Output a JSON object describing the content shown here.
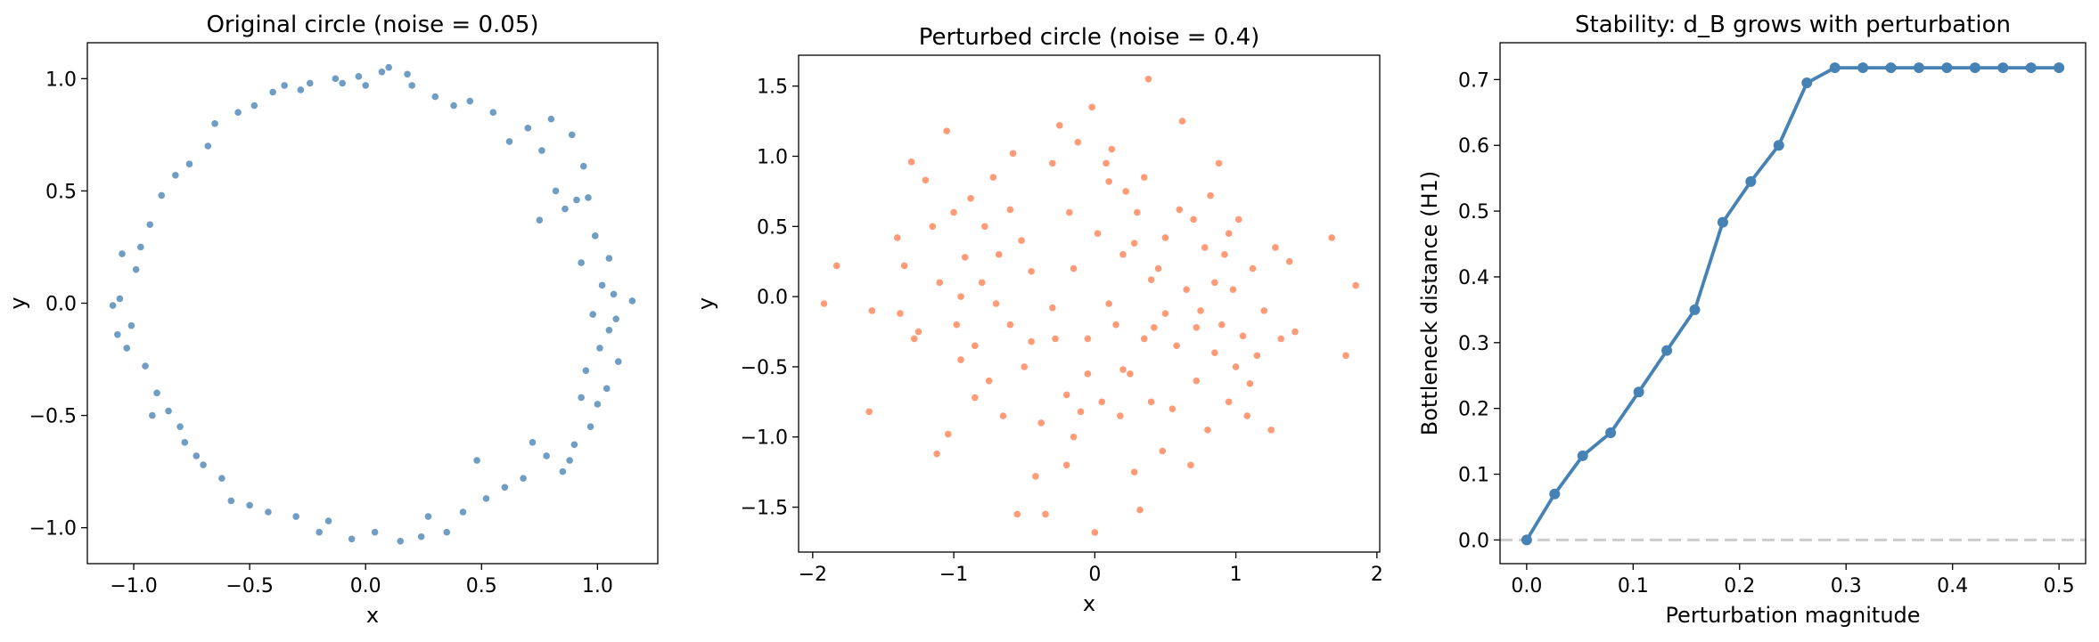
{
  "colors": {
    "circle": "#4682b4",
    "perturbed": "#ff7f50",
    "stability": "#4682b4",
    "baseline": "#cccccc"
  },
  "chart_data": [
    {
      "type": "scatter",
      "title": "Original circle (noise = 0.05)",
      "xlabel": "x",
      "ylabel": "y",
      "xlim": [
        -1.2,
        1.26
      ],
      "ylim": [
        -1.16,
        1.16
      ],
      "xticks": [
        -1.0,
        -0.5,
        0.0,
        0.5,
        1.0
      ],
      "yticks": [
        -1.0,
        -0.5,
        0.0,
        0.5,
        1.0
      ],
      "xtick_labels": [
        "−1.0",
        "−0.5",
        "0.0",
        "0.5",
        "1.0"
      ],
      "ytick_labels": [
        "−1.0",
        "−0.5",
        "0.0",
        "0.5",
        "1.0"
      ],
      "points": [
        [
          1.15,
          0.01
        ],
        [
          1.09,
          -0.26
        ],
        [
          1.08,
          -0.07
        ],
        [
          1.07,
          0.04
        ],
        [
          1.05,
          0.2
        ],
        [
          1.05,
          -0.12
        ],
        [
          1.04,
          -0.38
        ],
        [
          1.02,
          0.08
        ],
        [
          1.01,
          -0.2
        ],
        [
          1.0,
          -0.45
        ],
        [
          0.99,
          0.3
        ],
        [
          0.98,
          -0.05
        ],
        [
          0.97,
          -0.55
        ],
        [
          0.96,
          0.47
        ],
        [
          0.95,
          -0.3
        ],
        [
          0.94,
          0.61
        ],
        [
          0.93,
          -0.42
        ],
        [
          0.93,
          0.18
        ],
        [
          0.91,
          0.46
        ],
        [
          0.9,
          -0.63
        ],
        [
          0.89,
          0.75
        ],
        [
          0.88,
          -0.7
        ],
        [
          0.86,
          0.42
        ],
        [
          0.85,
          -0.75
        ],
        [
          0.82,
          0.5
        ],
        [
          0.8,
          0.82
        ],
        [
          0.78,
          -0.68
        ],
        [
          0.76,
          0.68
        ],
        [
          0.75,
          0.37
        ],
        [
          0.72,
          -0.62
        ],
        [
          0.7,
          0.78
        ],
        [
          0.68,
          -0.78
        ],
        [
          0.62,
          0.72
        ],
        [
          0.6,
          -0.82
        ],
        [
          0.55,
          0.85
        ],
        [
          0.52,
          -0.87
        ],
        [
          0.48,
          -0.7
        ],
        [
          0.45,
          0.9
        ],
        [
          0.42,
          -0.93
        ],
        [
          0.38,
          0.88
        ],
        [
          0.35,
          -1.02
        ],
        [
          0.3,
          0.92
        ],
        [
          0.27,
          -0.95
        ],
        [
          0.24,
          -1.04
        ],
        [
          0.2,
          0.97
        ],
        [
          0.18,
          1.02
        ],
        [
          0.15,
          -1.06
        ],
        [
          0.1,
          1.05
        ],
        [
          0.07,
          1.03
        ],
        [
          0.04,
          -1.02
        ],
        [
          0.0,
          0.97
        ],
        [
          -0.03,
          1.01
        ],
        [
          -0.06,
          -1.05
        ],
        [
          -0.1,
          0.98
        ],
        [
          -0.13,
          1.0
        ],
        [
          -0.16,
          -0.97
        ],
        [
          -0.2,
          -1.02
        ],
        [
          -0.24,
          0.98
        ],
        [
          -0.28,
          0.95
        ],
        [
          -0.3,
          -0.95
        ],
        [
          -0.35,
          0.97
        ],
        [
          -0.4,
          0.94
        ],
        [
          -0.42,
          -0.93
        ],
        [
          -0.48,
          0.88
        ],
        [
          -0.5,
          -0.9
        ],
        [
          -0.55,
          0.85
        ],
        [
          -0.58,
          -0.88
        ],
        [
          -0.62,
          -0.78
        ],
        [
          -0.65,
          0.8
        ],
        [
          -0.68,
          0.7
        ],
        [
          -0.7,
          -0.72
        ],
        [
          -0.73,
          -0.68
        ],
        [
          -0.76,
          0.62
        ],
        [
          -0.8,
          -0.55
        ],
        [
          -0.82,
          0.57
        ],
        [
          -0.85,
          -0.48
        ],
        [
          -0.88,
          0.48
        ],
        [
          -0.9,
          -0.4
        ],
        [
          -0.93,
          0.35
        ],
        [
          -0.95,
          -0.28
        ],
        [
          -0.97,
          0.25
        ],
        [
          -0.99,
          0.15
        ],
        [
          -1.01,
          -0.1
        ],
        [
          -1.03,
          -0.2
        ],
        [
          -1.05,
          0.22
        ],
        [
          -1.06,
          0.02
        ],
        [
          -1.07,
          -0.14
        ],
        [
          -1.09,
          -0.01
        ],
        [
          -0.92,
          -0.5
        ],
        [
          -0.78,
          -0.62
        ]
      ]
    },
    {
      "type": "scatter",
      "title": "Perturbed circle (noise = 0.4)",
      "xlabel": "x",
      "ylabel": "y",
      "xlim": [
        -2.1,
        2.02
      ],
      "ylim": [
        -1.82,
        1.72
      ],
      "xticks": [
        -2,
        -1,
        0,
        1,
        2
      ],
      "yticks": [
        -1.5,
        -1.0,
        -0.5,
        0.0,
        0.5,
        1.0,
        1.5
      ],
      "xtick_labels": [
        "−2",
        "−1",
        "0",
        "1",
        "2"
      ],
      "ytick_labels": [
        "−1.5",
        "−1.0",
        "−0.5",
        "0.0",
        "0.5",
        "1.0",
        "1.5"
      ],
      "points": [
        [
          -1.92,
          -0.05
        ],
        [
          -1.83,
          0.22
        ],
        [
          -1.6,
          -0.82
        ],
        [
          -1.58,
          -0.1
        ],
        [
          -1.4,
          0.42
        ],
        [
          -1.38,
          -0.12
        ],
        [
          -1.3,
          0.96
        ],
        [
          -1.28,
          -0.3
        ],
        [
          -1.2,
          0.83
        ],
        [
          -1.15,
          0.5
        ],
        [
          -1.12,
          -1.12
        ],
        [
          -1.1,
          0.1
        ],
        [
          -1.05,
          1.18
        ],
        [
          -1.04,
          -0.98
        ],
        [
          -1.0,
          0.6
        ],
        [
          -0.98,
          -0.2
        ],
        [
          -0.95,
          -0.45
        ],
        [
          -0.92,
          0.28
        ],
        [
          -0.88,
          0.7
        ],
        [
          -0.85,
          -0.35
        ],
        [
          -0.8,
          0.1
        ],
        [
          -0.78,
          0.5
        ],
        [
          -0.75,
          -0.6
        ],
        [
          -0.72,
          0.85
        ],
        [
          -0.68,
          0.3
        ],
        [
          -0.65,
          -0.85
        ],
        [
          -0.6,
          -0.2
        ],
        [
          -0.58,
          1.02
        ],
        [
          -0.55,
          -1.55
        ],
        [
          -0.52,
          0.4
        ],
        [
          -0.5,
          -0.5
        ],
        [
          -0.45,
          0.18
        ],
        [
          -0.42,
          -1.28
        ],
        [
          -0.38,
          -0.9
        ],
        [
          -0.35,
          -1.55
        ],
        [
          -0.3,
          0.95
        ],
        [
          -0.28,
          -0.3
        ],
        [
          -0.25,
          1.22
        ],
        [
          -0.2,
          -0.7
        ],
        [
          -0.18,
          0.6
        ],
        [
          -0.15,
          -1.0
        ],
        [
          -0.12,
          1.1
        ],
        [
          -0.1,
          -0.82
        ],
        [
          -0.05,
          -0.55
        ],
        [
          -0.02,
          1.35
        ],
        [
          0.0,
          -1.68
        ],
        [
          0.02,
          0.45
        ],
        [
          0.05,
          -0.75
        ],
        [
          0.08,
          0.95
        ],
        [
          0.1,
          -0.05
        ],
        [
          0.12,
          1.05
        ],
        [
          0.15,
          -0.2
        ],
        [
          0.18,
          -0.85
        ],
        [
          0.2,
          0.3
        ],
        [
          0.22,
          0.75
        ],
        [
          0.25,
          -0.55
        ],
        [
          0.28,
          -1.25
        ],
        [
          0.3,
          0.6
        ],
        [
          0.32,
          -1.52
        ],
        [
          0.35,
          -0.3
        ],
        [
          0.38,
          1.55
        ],
        [
          0.4,
          -0.75
        ],
        [
          0.42,
          -0.22
        ],
        [
          0.45,
          0.2
        ],
        [
          0.48,
          -1.1
        ],
        [
          0.5,
          0.42
        ],
        [
          0.55,
          -0.8
        ],
        [
          0.58,
          -0.35
        ],
        [
          0.62,
          1.25
        ],
        [
          0.65,
          0.05
        ],
        [
          0.68,
          -1.2
        ],
        [
          0.7,
          0.55
        ],
        [
          0.72,
          -0.6
        ],
        [
          0.75,
          -0.1
        ],
        [
          0.78,
          0.35
        ],
        [
          0.8,
          -0.95
        ],
        [
          0.82,
          0.72
        ],
        [
          0.85,
          -0.4
        ],
        [
          0.88,
          0.95
        ],
        [
          0.9,
          -0.2
        ],
        [
          0.92,
          0.3
        ],
        [
          0.95,
          -0.75
        ],
        [
          0.98,
          0.05
        ],
        [
          1.0,
          -0.5
        ],
        [
          1.02,
          0.55
        ],
        [
          1.05,
          -0.28
        ],
        [
          1.08,
          -0.85
        ],
        [
          1.12,
          0.2
        ],
        [
          1.15,
          -0.42
        ],
        [
          1.2,
          -0.1
        ],
        [
          1.25,
          -0.95
        ],
        [
          1.28,
          0.35
        ],
        [
          1.32,
          -0.3
        ],
        [
          1.38,
          0.25
        ],
        [
          1.42,
          -0.25
        ],
        [
          1.68,
          0.42
        ],
        [
          1.78,
          -0.42
        ],
        [
          1.85,
          0.08
        ],
        [
          -0.95,
          0.0
        ],
        [
          0.5,
          -0.12
        ],
        [
          -0.45,
          -0.32
        ],
        [
          0.2,
          -0.52
        ],
        [
          -1.25,
          -0.25
        ],
        [
          0.6,
          0.62
        ],
        [
          -0.15,
          0.2
        ],
        [
          0.35,
          0.85
        ],
        [
          -0.85,
          -0.72
        ],
        [
          0.95,
          0.45
        ],
        [
          -0.6,
          0.62
        ],
        [
          0.1,
          0.82
        ],
        [
          -0.3,
          -0.08
        ],
        [
          0.72,
          -0.22
        ],
        [
          -0.05,
          -0.3
        ],
        [
          0.4,
          0.12
        ],
        [
          -1.35,
          0.22
        ],
        [
          1.1,
          -0.62
        ],
        [
          -0.7,
          -0.05
        ],
        [
          0.28,
          0.38
        ],
        [
          -0.2,
          -1.2
        ],
        [
          0.85,
          0.1
        ]
      ]
    },
    {
      "type": "line",
      "title": "Stability: d_B grows with perturbation",
      "xlabel": "Perturbation magnitude",
      "ylabel": "Bottleneck distance (H1)",
      "xlim": [
        -0.025,
        0.525
      ],
      "ylim": [
        -0.036,
        0.756
      ],
      "xticks": [
        0.0,
        0.1,
        0.2,
        0.3,
        0.4,
        0.5
      ],
      "yticks": [
        0.0,
        0.1,
        0.2,
        0.3,
        0.4,
        0.5,
        0.6,
        0.7
      ],
      "xtick_labels": [
        "0.0",
        "0.1",
        "0.2",
        "0.3",
        "0.4",
        "0.5"
      ],
      "ytick_labels": [
        "0.0",
        "0.1",
        "0.2",
        "0.3",
        "0.4",
        "0.5",
        "0.6",
        "0.7"
      ],
      "x": [
        0.0,
        0.0263,
        0.0526,
        0.0789,
        0.1053,
        0.1316,
        0.1579,
        0.1842,
        0.2105,
        0.2368,
        0.2632,
        0.2895,
        0.3158,
        0.3421,
        0.3684,
        0.3947,
        0.4211,
        0.4474,
        0.4737,
        0.5
      ],
      "y": [
        0.0,
        0.07,
        0.128,
        0.163,
        0.225,
        0.288,
        0.35,
        0.483,
        0.545,
        0.6,
        0.695,
        0.718,
        0.718,
        0.718,
        0.718,
        0.718,
        0.718,
        0.718,
        0.718,
        0.718
      ],
      "baseline": 0.0
    }
  ]
}
